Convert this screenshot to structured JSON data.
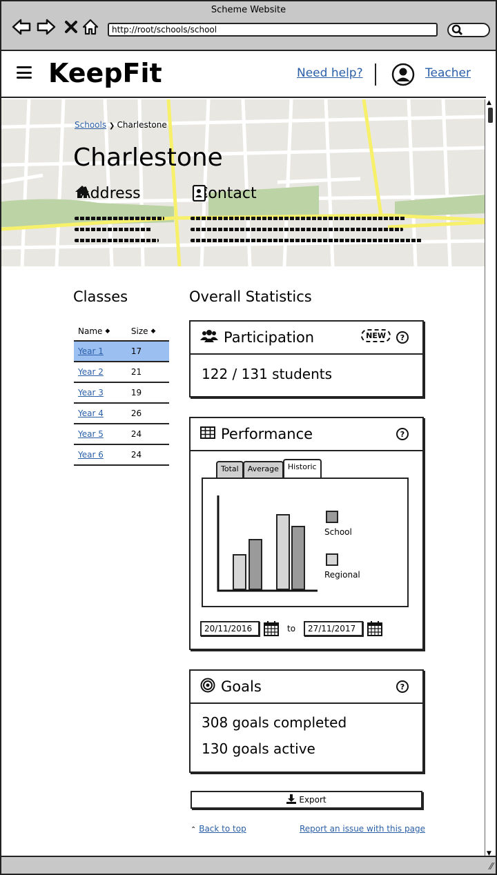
{
  "browser": {
    "window_title": "Scheme Website",
    "url": "http://root/schools/school",
    "icons": [
      "back-arrow-icon",
      "forward-arrow-icon",
      "close-icon",
      "home-icon",
      "search-icon"
    ]
  },
  "header": {
    "logo": "KeepFit",
    "help_link": "Need help?",
    "user_link": "Teacher",
    "icons": [
      "hamburger-menu-icon",
      "user-avatar-icon"
    ]
  },
  "hero": {
    "breadcrumb": {
      "parent": "Schools",
      "current": "Charlestone"
    },
    "title": "Charlestone",
    "address_heading": "Address",
    "contact_heading": "Contact"
  },
  "classes": {
    "heading": "Classes",
    "columns": [
      "Name",
      "Size"
    ],
    "rows": [
      {
        "name": "Year 1",
        "size": "17",
        "selected": true
      },
      {
        "name": "Year 2",
        "size": "21"
      },
      {
        "name": "Year 3",
        "size": "19"
      },
      {
        "name": "Year 4",
        "size": "26"
      },
      {
        "name": "Year 5",
        "size": "24"
      },
      {
        "name": "Year 6",
        "size": "24"
      }
    ]
  },
  "statistics": {
    "heading": "Overall Statistics",
    "participation": {
      "title": "Participation",
      "badge": "NEW",
      "value": "122 / 131 students"
    },
    "performance": {
      "title": "Performance",
      "tabs": [
        "Total",
        "Average",
        "Historic"
      ],
      "active_tab": "Historic",
      "legend": [
        {
          "name": "School",
          "color": "#9a9a9a"
        },
        {
          "name": "Regional",
          "color": "#d6d6d6"
        }
      ],
      "date_from": "20/11/2016",
      "date_to_label": "to",
      "date_to": "27/11/2017"
    },
    "goals": {
      "title": "Goals",
      "completed": "308 goals completed",
      "active": "130 goals active"
    }
  },
  "actions": {
    "export": "Export",
    "back_to_top": "Back to top",
    "report_issue": "Report an issue with this page"
  },
  "colors": {
    "link": "#2a5fa8",
    "selected_row": "#9abff0",
    "chrome": "#c8c8c8",
    "map_road": "#f7f06a",
    "map_park": "#bcd3a5"
  }
}
